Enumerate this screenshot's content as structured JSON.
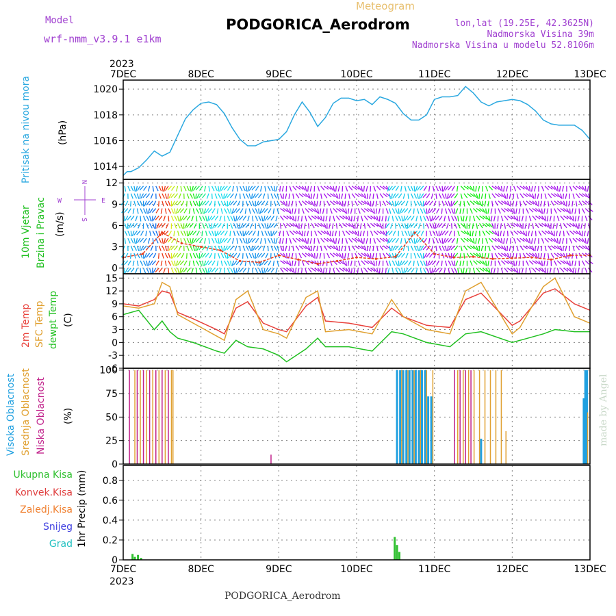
{
  "header": {
    "model_label": "Model",
    "model_name": "wrf-nmm_v3.9.1 e1km",
    "product": "Meteogram",
    "station": "PODGORICA_Aerodrom",
    "lonlat": "lon,lat (19.25E, 42.3625N)",
    "altitude": "Nadmorska Visina 39m",
    "model_altitude": "Nadmorska Visina u modelu 52.8106m",
    "footer_station": "PODGORICA_Aerodrom",
    "credit": "made by Angel"
  },
  "x_axis": {
    "year": "2023",
    "ticks": [
      "7DEC",
      "8DEC",
      "9DEC",
      "10DEC",
      "11DEC",
      "12DEC",
      "13DEC"
    ]
  },
  "wind_compass": {
    "n": "N",
    "s": "S",
    "e": "E",
    "w": "W"
  },
  "colors": {
    "pressure": "#2aa8e0",
    "temp": "#e8403a",
    "sfc_temp": "#e0a030",
    "dewpoint": "#20c020",
    "high_cloud": "#20a0e0",
    "mid_cloud": "#e0a030",
    "low_cloud": "#c0208a",
    "total_precip": "#30c030",
    "conv_precip": "#e04040",
    "freezing": "#f08030",
    "snow": "#4040e0",
    "hail": "#20c0c0",
    "wind_label": "#20c020",
    "compass": "#a040d0"
  },
  "chart_data": [
    {
      "type": "line",
      "panel": "pressure",
      "ylabel_left": "Pritisak na nivou mora",
      "ylabel_unit": "(hPa)",
      "yticks": [
        1014,
        1016,
        1018,
        1020
      ],
      "ylim": [
        1013,
        1020.7
      ],
      "x": [
        0,
        0.05,
        0.1,
        0.2,
        0.3,
        0.4,
        0.5,
        0.6,
        0.7,
        0.8,
        0.9,
        1.0,
        1.1,
        1.2,
        1.3,
        1.4,
        1.5,
        1.6,
        1.7,
        1.8,
        1.9,
        2.0,
        2.1,
        2.2,
        2.3,
        2.4,
        2.5,
        2.6,
        2.7,
        2.8,
        2.9,
        3.0,
        3.1,
        3.2,
        3.3,
        3.4,
        3.5,
        3.6,
        3.7,
        3.8,
        3.9,
        4.0,
        4.1,
        4.2,
        4.3,
        4.4,
        4.5,
        4.6,
        4.7,
        4.8,
        4.9,
        5.0,
        5.1,
        5.2,
        5.3,
        5.4,
        5.5,
        5.6,
        5.7,
        5.8,
        5.9,
        6.0
      ],
      "series": [
        {
          "values": [
            1013.3,
            1013.6,
            1013.6,
            1013.9,
            1014.5,
            1015.2,
            1014.8,
            1015.1,
            1016.4,
            1017.7,
            1018.4,
            1018.9,
            1019.0,
            1018.8,
            1018.1,
            1017.0,
            1016.1,
            1015.6,
            1015.6,
            1015.9,
            1016.0,
            1016.1,
            1016.7,
            1018.0,
            1019.0,
            1018.2,
            1017.1,
            1017.8,
            1018.9,
            1019.3,
            1019.3,
            1019.1,
            1019.2,
            1018.8,
            1019.4,
            1019.2,
            1018.9,
            1018.1,
            1017.6,
            1017.6,
            1018.0,
            1019.2,
            1019.4,
            1019.4,
            1019.5,
            1020.2,
            1019.7,
            1019.0,
            1018.7,
            1019.0,
            1019.1,
            1019.2,
            1019.1,
            1018.8,
            1018.3,
            1017.6,
            1017.3,
            1017.2,
            1017.2,
            1017.2,
            1016.8,
            1016.1
          ]
        }
      ]
    },
    {
      "type": "line",
      "panel": "wind",
      "ylabel_left": [
        "10m Vjetar",
        "Brzina i Pravac"
      ],
      "ylabel_unit": "(m/s)",
      "yticks": [
        0,
        3,
        6,
        9,
        12
      ],
      "ylim": [
        -0.8,
        12.5
      ],
      "x": [
        0.0,
        0.25,
        0.5,
        0.75,
        1.0,
        1.25,
        1.5,
        1.75,
        2.0,
        2.25,
        2.5,
        2.75,
        3.0,
        3.25,
        3.5,
        3.75,
        4.0,
        4.25,
        4.5,
        4.75,
        5.0,
        5.25,
        5.5,
        5.75,
        6.0
      ],
      "series": [
        {
          "values": [
            1.5,
            2.0,
            5.0,
            3.5,
            3.0,
            2.5,
            1.0,
            0.8,
            1.8,
            1.2,
            0.6,
            1.0,
            1.5,
            1.3,
            1.6,
            5.0,
            2.0,
            1.5,
            1.6,
            1.3,
            1.4,
            1.5,
            1.2,
            1.8,
            1.8
          ]
        }
      ]
    },
    {
      "type": "line",
      "panel": "temperature",
      "ylabel_left": [
        "2m Temp",
        "SFC Temp",
        "dewpt Temp"
      ],
      "ylabel_unit": "(C)",
      "yticks": [
        -6,
        -3,
        0,
        3,
        6,
        9,
        12,
        15
      ],
      "ylim": [
        -6,
        16
      ],
      "x": [
        0,
        0.2,
        0.4,
        0.5,
        0.6,
        0.7,
        0.9,
        1.2,
        1.3,
        1.45,
        1.6,
        1.8,
        2.0,
        2.1,
        2.35,
        2.5,
        2.6,
        2.9,
        3.2,
        3.45,
        3.6,
        3.9,
        4.2,
        4.4,
        4.6,
        5.0,
        5.1,
        5.4,
        5.55,
        5.8,
        6.0
      ],
      "series": [
        {
          "name": "2m Temp",
          "values": [
            9,
            8.5,
            10,
            12,
            11.5,
            7,
            5.5,
            3,
            2,
            8,
            9.5,
            4.5,
            3,
            2.5,
            8.5,
            10.5,
            5,
            4.5,
            3.5,
            8,
            6,
            4,
            3.5,
            10,
            11.5,
            4,
            5,
            11.5,
            12.5,
            9,
            7.5
          ]
        },
        {
          "name": "SFC Temp",
          "values": [
            8.5,
            8,
            9,
            14,
            13,
            6.5,
            4.5,
            1.5,
            0.5,
            10,
            12,
            3,
            2,
            1,
            10.5,
            12,
            2.5,
            3,
            2,
            10,
            6,
            3,
            2,
            12,
            14,
            2,
            3.5,
            13,
            15,
            6,
            4.5
          ]
        },
        {
          "name": "dewpt Temp",
          "values": [
            6.5,
            7.5,
            3,
            5,
            2.5,
            1,
            0,
            -2,
            -2.5,
            0.5,
            -1,
            -1.5,
            -3,
            -4.5,
            -1.5,
            1,
            -1,
            -1,
            -2,
            2.5,
            2,
            0,
            -1,
            2,
            2.5,
            0,
            0.5,
            2,
            3,
            2.5,
            2.5
          ]
        }
      ]
    },
    {
      "type": "bar",
      "panel": "cloud",
      "ylabel_left": [
        "Visoka Oblacnost",
        "Srednja Oblacnost",
        "Niska Oblacnost"
      ],
      "ylabel_unit": "(%)",
      "yticks": [
        0,
        25,
        50,
        75,
        100
      ],
      "ylim": [
        0,
        102
      ],
      "series": [
        {
          "name": "Visoka Oblacnost",
          "x": [
            3.52,
            3.56,
            3.6,
            3.64,
            3.68,
            3.72,
            3.76,
            3.8,
            3.84,
            3.88,
            3.92,
            3.96,
            4.6,
            5.92,
            5.94,
            5.96
          ],
          "values": [
            100,
            100,
            100,
            100,
            100,
            100,
            100,
            100,
            100,
            100,
            72,
            72,
            27,
            70,
            100,
            100
          ]
        },
        {
          "name": "Srednja Oblacnost",
          "x": [
            0.15,
            0.22,
            0.3,
            0.38,
            0.46,
            0.54,
            0.62,
            0.64,
            3.58,
            3.66,
            3.74,
            3.82,
            3.9,
            3.98,
            4.3,
            4.37,
            4.44,
            4.51,
            4.58,
            4.65,
            4.72,
            4.79,
            4.86,
            4.92,
            5.97
          ],
          "values": [
            100,
            100,
            100,
            100,
            100,
            100,
            100,
            100,
            100,
            100,
            100,
            100,
            100,
            100,
            100,
            100,
            100,
            100,
            100,
            100,
            100,
            100,
            100,
            35,
            55
          ]
        },
        {
          "name": "Niska Oblacnost",
          "x": [
            0.08,
            0.18,
            0.26,
            0.34,
            0.42,
            0.5,
            0.58,
            1.9,
            4.26,
            4.33,
            4.4,
            4.47
          ],
          "values": [
            100,
            100,
            100,
            100,
            100,
            100,
            100,
            10,
            100,
            100,
            100,
            100
          ]
        }
      ]
    },
    {
      "type": "bar",
      "panel": "precipitation",
      "ylabel_left": [
        "Ukupna Kisa",
        "Konvek.Kisa",
        "Zaledj.Kisa",
        "Snijeg",
        "Grad"
      ],
      "ylabel_unit": "1hr Precip (mm)",
      "yticks": [
        0,
        0.2,
        0.4,
        0.6,
        0.8
      ],
      "ylim": [
        0,
        0.95
      ],
      "series": [
        {
          "name": "Ukupna Kisa",
          "x": [
            0.12,
            0.15,
            0.19,
            0.23,
            3.49,
            3.52,
            3.55
          ],
          "values": [
            0.06,
            0.03,
            0.05,
            0.02,
            0.23,
            0.15,
            0.08
          ]
        }
      ]
    }
  ]
}
